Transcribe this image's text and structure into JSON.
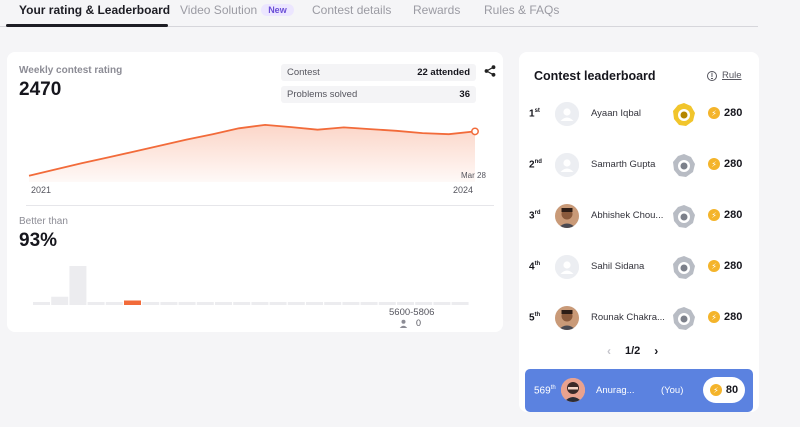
{
  "tabs": [
    {
      "label": "Your rating & Leaderboard",
      "active": true
    },
    {
      "label": "Video Solution",
      "badge": "New"
    },
    {
      "label": "Contest details"
    },
    {
      "label": "Rewards"
    },
    {
      "label": "Rules & FAQs"
    }
  ],
  "rating": {
    "label": "Weekly contest rating",
    "value": "2470",
    "stats": [
      {
        "key": "Contest",
        "value": "22 attended"
      },
      {
        "key": "Problems solved",
        "value": "36"
      }
    ],
    "axis_start": "2021",
    "axis_end": "2024",
    "last_point_label": "Mar 28",
    "share_icon": "share-icon"
  },
  "chart_data": {
    "type": "area",
    "title": "",
    "xlabel": "",
    "ylabel": "",
    "x_range": [
      "2021",
      "2024"
    ],
    "series": [
      {
        "values": [
          1690,
          1800,
          1910,
          2010,
          2115,
          2220,
          2325,
          2420,
          2525,
          2585,
          2545,
          2500,
          2540,
          2510,
          2480,
          2440,
          2420,
          2470
        ]
      }
    ],
    "grid": false
  },
  "better_than": {
    "label": "Better than",
    "value": "93%",
    "highlight_index": 5,
    "bar_levels": [
      0.03,
      0.11,
      0.52,
      0.04,
      0.03,
      0.06,
      0.03,
      0.03,
      0.03,
      0.03,
      0.03,
      0.03,
      0.03,
      0.03,
      0.03,
      0.03,
      0.03,
      0.03,
      0.03,
      0.03,
      0.03,
      0.03,
      0.03,
      0.03
    ],
    "range_label": "5600-5806",
    "range_users": "0",
    "accent": "#f26b3a"
  },
  "leaderboard": {
    "title": "Contest leaderboard",
    "rule_label": "Rule",
    "rows": [
      {
        "rank": "1",
        "suffix": "st",
        "name": "Ayaan Iqbal",
        "score": "280",
        "badge": "gold",
        "avatar": "placeholder"
      },
      {
        "rank": "2",
        "suffix": "nd",
        "name": "Samarth Gupta",
        "score": "280",
        "badge": "silver",
        "avatar": "placeholder"
      },
      {
        "rank": "3",
        "suffix": "rd",
        "name": "Abhishek Chou...",
        "score": "280",
        "badge": "silver",
        "avatar": "photo"
      },
      {
        "rank": "4",
        "suffix": "th",
        "name": "Sahil Sidana",
        "score": "280",
        "badge": "silver",
        "avatar": "placeholder"
      },
      {
        "rank": "5",
        "suffix": "th",
        "name": "Rounak Chakra...",
        "score": "280",
        "badge": "silver",
        "avatar": "photo"
      }
    ],
    "pager": "1/2",
    "you": {
      "rank": "569",
      "suffix": "th",
      "name": "Anurag...",
      "tag": "(You)",
      "score": "80"
    }
  },
  "colors": {
    "accent": "#f26b3a",
    "you_bar": "#5b82e0",
    "coin": "#f4b42b"
  }
}
